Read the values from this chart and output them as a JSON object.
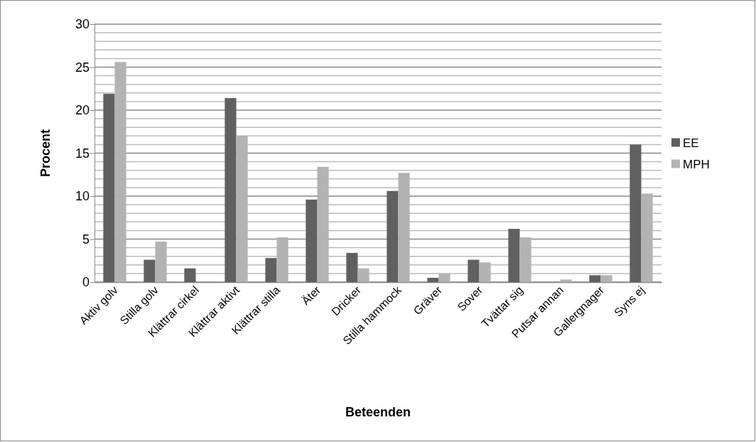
{
  "chart_data": {
    "type": "bar",
    "xlabel": "Beteenden",
    "ylabel": "Procent",
    "categories": [
      "Aktiv golv",
      "Stilla golv",
      "Klättrar cirkel",
      "Klättrar aktivt",
      "Klättrar stilla",
      "Äter",
      "Dricker",
      "Stilla hammock",
      "Gräver",
      "Sover",
      "Tvättar sig",
      "Putsar annan",
      "Gallergnager",
      "Syns ej"
    ],
    "series": [
      {
        "name": "EE",
        "color": "#606060",
        "values": [
          21.9,
          2.6,
          1.6,
          21.4,
          2.8,
          9.6,
          3.4,
          10.6,
          0.5,
          2.6,
          6.2,
          0,
          0.8,
          16.0
        ]
      },
      {
        "name": "MPH",
        "color": "#b3b3b3",
        "values": [
          25.6,
          4.7,
          0,
          17.0,
          5.2,
          13.4,
          1.6,
          12.7,
          1.0,
          2.3,
          5.2,
          0.3,
          0.8,
          10.3
        ]
      }
    ],
    "ylim": [
      0,
      30
    ],
    "yticks": [
      0,
      {
        "value": 1,
        "label": null
      },
      {
        "value": 2,
        "label": null
      },
      {
        "value": 3,
        "label": null
      },
      {
        "value": 4,
        "label": null
      },
      5,
      {
        "value": 6,
        "label": null
      },
      {
        "value": 7,
        "label": null
      },
      {
        "value": 8,
        "label": null
      },
      {
        "value": 9,
        "label": null
      },
      10,
      {
        "value": 11,
        "label": null
      },
      {
        "value": 12,
        "label": null
      },
      {
        "value": 13,
        "label": null
      },
      {
        "value": 14,
        "label": null
      },
      15,
      {
        "value": 16,
        "label": null
      },
      {
        "value": 17,
        "label": null
      },
      {
        "value": 18,
        "label": null
      },
      {
        "value": 19,
        "label": null
      },
      20,
      {
        "value": 21,
        "label": null
      },
      {
        "value": 22,
        "label": null
      },
      {
        "value": 23,
        "label": null
      },
      {
        "value": 24,
        "label": null
      },
      25,
      {
        "value": 26,
        "label": null
      },
      {
        "value": 27,
        "label": null
      },
      {
        "value": 28,
        "label": null
      },
      {
        "value": 29,
        "label": null
      },
      30
    ],
    "grid": "y",
    "legend": "right"
  }
}
